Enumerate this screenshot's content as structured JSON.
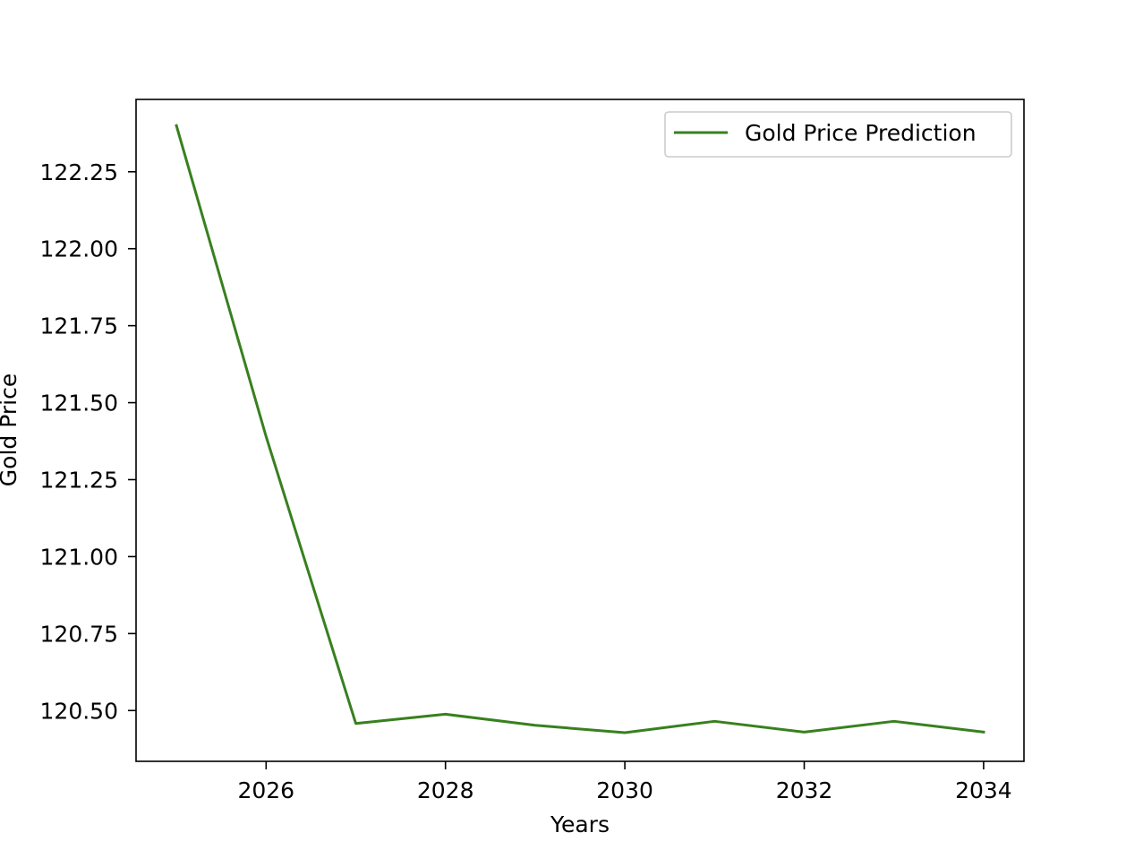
{
  "chart_data": {
    "type": "line",
    "title": "",
    "xlabel": "Years",
    "ylabel": "Gold Price",
    "xlim": [
      2024.55,
      2034.45
    ],
    "ylim": [
      120.335,
      122.485
    ],
    "xticks": [
      2026,
      2028,
      2030,
      2032,
      2034
    ],
    "yticks": [
      120.5,
      120.75,
      121.0,
      121.25,
      121.5,
      121.75,
      122.0,
      122.25
    ],
    "xtick_labels": [
      "2026",
      "2028",
      "2030",
      "2032",
      "2034"
    ],
    "ytick_labels": [
      "120.50",
      "120.75",
      "121.00",
      "121.25",
      "121.50",
      "121.75",
      "122.00",
      "122.25"
    ],
    "grid": false,
    "legend_position": "top-right",
    "x": [
      2025,
      2026,
      2027,
      2028,
      2029,
      2030,
      2031,
      2032,
      2033,
      2034
    ],
    "series": [
      {
        "name": "Gold Price Prediction",
        "color": "#38801f",
        "values": [
          122.4,
          121.39,
          120.458,
          120.488,
          120.452,
          120.428,
          120.465,
          120.43,
          120.465,
          120.43
        ]
      }
    ]
  }
}
